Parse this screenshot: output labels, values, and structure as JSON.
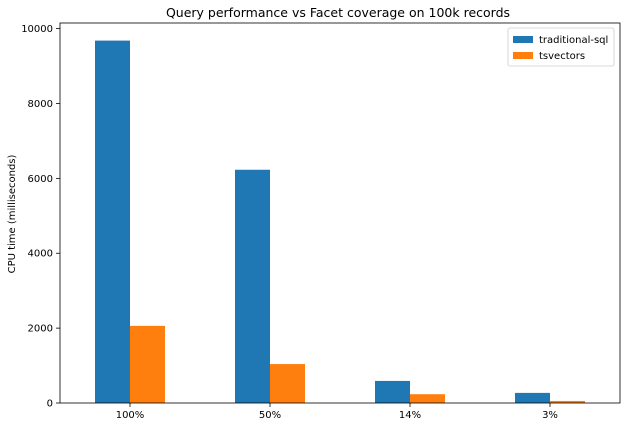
{
  "chart_data": {
    "type": "bar",
    "title": "Query performance vs Facet coverage on 100k records",
    "xlabel": "",
    "ylabel": "CPU time (milliseconds)",
    "categories": [
      "100%",
      "50%",
      "14%",
      "3%"
    ],
    "series": [
      {
        "name": "traditional-sql",
        "color": "#1f77b4",
        "values": [
          9680,
          6230,
          590,
          270
        ]
      },
      {
        "name": "tsvectors",
        "color": "#ff7f0e",
        "values": [
          2060,
          1040,
          235,
          55
        ]
      }
    ],
    "ylim": [
      0,
      10150
    ],
    "yticks": [
      0,
      2000,
      4000,
      6000,
      8000,
      10000
    ],
    "grid": false,
    "legend_position": "top-right"
  }
}
